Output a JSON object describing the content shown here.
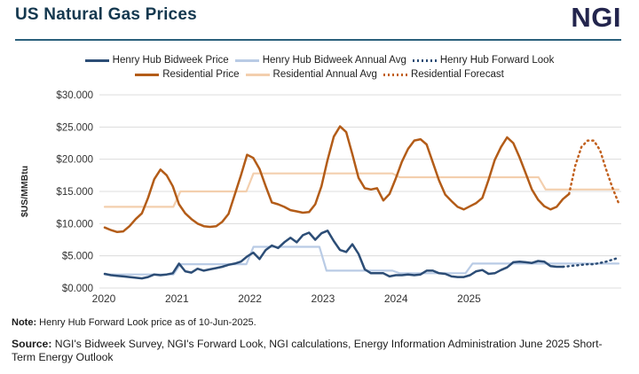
{
  "header": {
    "title": "US Natural Gas Prices",
    "logo_text": "NGI"
  },
  "footer": {
    "note_label": "Note:",
    "note_text": " Henry Hub Forward Look price as of 10-Jun-2025.",
    "source_label": "Source:",
    "source_text": " NGI's Bidweek Survey, NGI's Forward Look, NGI calculations, Energy Information Administration June 2025 Short-Term Energy Outlook"
  },
  "chart_data": {
    "type": "line",
    "title": "US Natural Gas Prices",
    "xlabel": "",
    "ylabel": "$US/MMBtu",
    "ylim": [
      0,
      30
    ],
    "grid": "horizontal",
    "legend_position": "top",
    "y_ticks": {
      "values": [
        0,
        5,
        10,
        15,
        20,
        25,
        30
      ],
      "labels": [
        "$0.000",
        "$5.000",
        "$10.000",
        "$15.000",
        "$20.000",
        "$25.000",
        "$30.000"
      ]
    },
    "x_ticks": [
      "2020",
      "2021",
      "2022",
      "2023",
      "2024",
      "2025"
    ],
    "time_axis": {
      "start": "2020-01",
      "end": "2026-12",
      "interval": "monthly",
      "points": 84
    },
    "avg_years": [
      "2020",
      "2021",
      "2022",
      "2023",
      "2024",
      "2025",
      "2026"
    ],
    "series": [
      {
        "id": "hh_bidweek",
        "name": "Henry Hub Bidweek Price",
        "kind": "monthly",
        "style": "solid",
        "color": "#2c4d76",
        "start_index": 0,
        "values": [
          2.2,
          2.0,
          1.9,
          1.8,
          1.7,
          1.6,
          1.5,
          1.7,
          2.1,
          2.0,
          2.1,
          2.3,
          3.8,
          2.6,
          2.4,
          3.0,
          2.7,
          2.9,
          3.1,
          3.3,
          3.6,
          3.8,
          4.1,
          4.9,
          5.5,
          4.5,
          5.9,
          6.6,
          6.2,
          7.1,
          7.8,
          7.1,
          8.2,
          8.6,
          7.5,
          8.5,
          8.9,
          7.3,
          5.9,
          5.6,
          6.8,
          5.3,
          2.9,
          2.3,
          2.3,
          2.3,
          1.8,
          2.0,
          2.0,
          2.1,
          2.0,
          2.1,
          2.7,
          2.7,
          2.3,
          2.2,
          1.8,
          1.7,
          1.7,
          2.0,
          2.6,
          2.8,
          2.2,
          2.3,
          2.8,
          3.2,
          4.0,
          4.1,
          4.0,
          3.9,
          4.2,
          4.1,
          3.4,
          3.3,
          3.3
        ]
      },
      {
        "id": "hh_avg",
        "name": "Henry Hub Bidweek Annual Avg",
        "kind": "annual_step",
        "style": "solid",
        "color": "#b9cbe5",
        "values": [
          2.1,
          3.7,
          6.4,
          2.7,
          2.3,
          3.8,
          3.8
        ]
      },
      {
        "id": "hh_forward",
        "name": "Henry Hub Forward Look",
        "kind": "monthly",
        "style": "dotted",
        "color": "#2c4d76",
        "start_index": 74,
        "values": [
          3.3,
          3.4,
          3.5,
          3.6,
          3.7,
          3.7,
          3.9,
          4.1,
          4.4,
          4.7
        ]
      },
      {
        "id": "res_price",
        "name": "Residential Price",
        "kind": "monthly",
        "style": "solid",
        "color": "#b35c18",
        "start_index": 0,
        "values": [
          9.4,
          9.0,
          8.7,
          8.8,
          9.6,
          10.7,
          11.6,
          14.0,
          16.9,
          18.4,
          17.5,
          15.8,
          13.0,
          11.6,
          10.7,
          10.0,
          9.6,
          9.5,
          9.6,
          10.3,
          11.5,
          14.5,
          17.5,
          20.7,
          20.2,
          18.5,
          15.8,
          13.3,
          13.0,
          12.6,
          12.1,
          11.9,
          11.7,
          11.8,
          13.0,
          15.8,
          19.9,
          23.5,
          25.1,
          24.2,
          20.8,
          17.1,
          15.5,
          15.3,
          15.5,
          13.6,
          14.6,
          17.0,
          19.6,
          21.6,
          22.9,
          23.1,
          22.3,
          19.5,
          16.7,
          14.5,
          13.5,
          12.6,
          12.2,
          12.7,
          13.2,
          14.0,
          16.8,
          19.9,
          21.9,
          23.4,
          22.5,
          20.3,
          17.8,
          15.3,
          13.7,
          12.7,
          12.2,
          12.6,
          13.8,
          14.6
        ]
      },
      {
        "id": "res_avg",
        "name": "Residential Annual Avg",
        "kind": "annual_step",
        "style": "solid",
        "color": "#f3cfae",
        "values": [
          12.6,
          15.0,
          17.8,
          17.8,
          17.2,
          17.2,
          15.3
        ]
      },
      {
        "id": "res_forecast",
        "name": "Residential Forecast",
        "kind": "monthly",
        "style": "dotted",
        "color": "#c2611f",
        "start_index": 75,
        "values": [
          14.6,
          19.0,
          21.9,
          22.9,
          22.9,
          21.4,
          18.4,
          15.6,
          13.2
        ]
      }
    ]
  }
}
